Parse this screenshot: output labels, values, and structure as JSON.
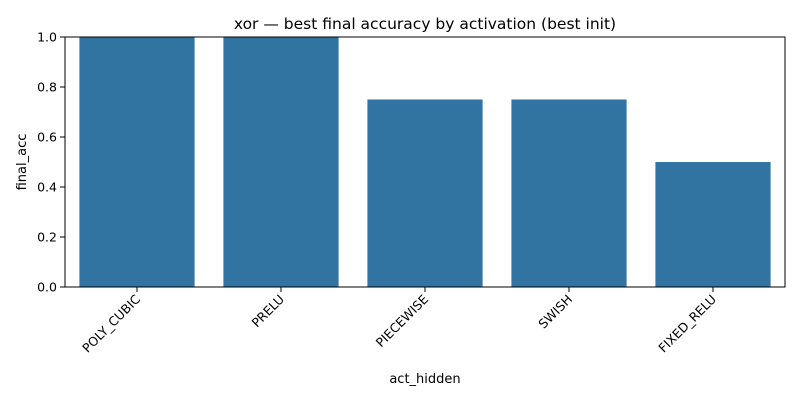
{
  "chart_data": {
    "type": "bar",
    "title": "xor — best final accuracy by activation (best init)",
    "xlabel": "act_hidden",
    "ylabel": "final_acc",
    "categories": [
      "POLY_CUBIC",
      "PRELU",
      "PIECEWISE",
      "SWISH",
      "FIXED_RELU"
    ],
    "values": [
      1.0,
      1.0,
      0.75,
      0.75,
      0.5
    ],
    "ylim": [
      0,
      1.0
    ],
    "yticks": [
      "0.0",
      "0.2",
      "0.4",
      "0.6",
      "0.8",
      "1.0"
    ],
    "grid": false,
    "bar_color": "#3274a1"
  }
}
